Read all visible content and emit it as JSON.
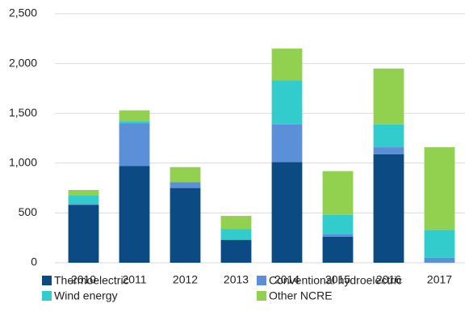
{
  "chart_data": {
    "type": "stacked_bar",
    "categories": [
      "2010",
      "2011",
      "2012",
      "2013",
      "2014",
      "2015",
      "2016",
      "2017"
    ],
    "series": [
      {
        "name": "Thermoelectric",
        "color": "#0b4a82",
        "values": [
          580,
          970,
          750,
          230,
          1010,
          260,
          1090,
          0
        ]
      },
      {
        "name": "Conventional hydroelectric",
        "color": "#5b90d8",
        "values": [
          10,
          430,
          60,
          0,
          380,
          30,
          70,
          50
        ]
      },
      {
        "name": "Wind energy",
        "color": "#33cccc",
        "values": [
          90,
          20,
          0,
          110,
          440,
          190,
          230,
          280
        ]
      },
      {
        "name": "Other NCRE",
        "color": "#92d050",
        "values": [
          50,
          110,
          150,
          130,
          320,
          440,
          560,
          830
        ]
      }
    ],
    "ylim": [
      0,
      2500
    ],
    "yticks": [
      0,
      500,
      {
        "value": 1000,
        "label": "1,000"
      },
      {
        "value": 1500,
        "label": "1,500"
      },
      {
        "value": 2000,
        "label": "2,000"
      },
      {
        "value": 2500,
        "label": "2,500"
      }
    ],
    "grid": true
  }
}
